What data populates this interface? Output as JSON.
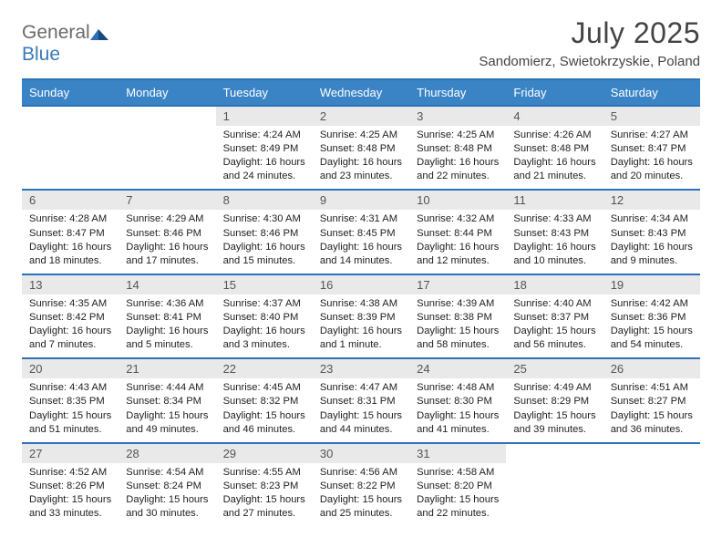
{
  "brand": {
    "word1": "General",
    "word2": "Blue",
    "word1_color": "#6a6a6a",
    "word2_color": "#3a7ab8"
  },
  "title": "July 2025",
  "subtitle": "Sandomierz, Swietokrzyskie, Poland",
  "colors": {
    "header_bar": "#3a84c6",
    "rule": "#2e71b8",
    "daynum_bg": "#e9e9e9",
    "daynum_fg": "#555555",
    "text": "#222222",
    "bg": "#ffffff"
  },
  "fonts": {
    "title_size_pt": 24,
    "subtitle_size_pt": 11,
    "dow_size_pt": 10,
    "cell_size_pt": 8.5
  },
  "days_of_week": [
    "Sunday",
    "Monday",
    "Tuesday",
    "Wednesday",
    "Thursday",
    "Friday",
    "Saturday"
  ],
  "weeks": [
    [
      {
        "n": "",
        "sunrise": "",
        "sunset": "",
        "daylight": ""
      },
      {
        "n": "",
        "sunrise": "",
        "sunset": "",
        "daylight": ""
      },
      {
        "n": "1",
        "sunrise": "Sunrise: 4:24 AM",
        "sunset": "Sunset: 8:49 PM",
        "daylight": "Daylight: 16 hours and 24 minutes."
      },
      {
        "n": "2",
        "sunrise": "Sunrise: 4:25 AM",
        "sunset": "Sunset: 8:48 PM",
        "daylight": "Daylight: 16 hours and 23 minutes."
      },
      {
        "n": "3",
        "sunrise": "Sunrise: 4:25 AM",
        "sunset": "Sunset: 8:48 PM",
        "daylight": "Daylight: 16 hours and 22 minutes."
      },
      {
        "n": "4",
        "sunrise": "Sunrise: 4:26 AM",
        "sunset": "Sunset: 8:48 PM",
        "daylight": "Daylight: 16 hours and 21 minutes."
      },
      {
        "n": "5",
        "sunrise": "Sunrise: 4:27 AM",
        "sunset": "Sunset: 8:47 PM",
        "daylight": "Daylight: 16 hours and 20 minutes."
      }
    ],
    [
      {
        "n": "6",
        "sunrise": "Sunrise: 4:28 AM",
        "sunset": "Sunset: 8:47 PM",
        "daylight": "Daylight: 16 hours and 18 minutes."
      },
      {
        "n": "7",
        "sunrise": "Sunrise: 4:29 AM",
        "sunset": "Sunset: 8:46 PM",
        "daylight": "Daylight: 16 hours and 17 minutes."
      },
      {
        "n": "8",
        "sunrise": "Sunrise: 4:30 AM",
        "sunset": "Sunset: 8:46 PM",
        "daylight": "Daylight: 16 hours and 15 minutes."
      },
      {
        "n": "9",
        "sunrise": "Sunrise: 4:31 AM",
        "sunset": "Sunset: 8:45 PM",
        "daylight": "Daylight: 16 hours and 14 minutes."
      },
      {
        "n": "10",
        "sunrise": "Sunrise: 4:32 AM",
        "sunset": "Sunset: 8:44 PM",
        "daylight": "Daylight: 16 hours and 12 minutes."
      },
      {
        "n": "11",
        "sunrise": "Sunrise: 4:33 AM",
        "sunset": "Sunset: 8:43 PM",
        "daylight": "Daylight: 16 hours and 10 minutes."
      },
      {
        "n": "12",
        "sunrise": "Sunrise: 4:34 AM",
        "sunset": "Sunset: 8:43 PM",
        "daylight": "Daylight: 16 hours and 9 minutes."
      }
    ],
    [
      {
        "n": "13",
        "sunrise": "Sunrise: 4:35 AM",
        "sunset": "Sunset: 8:42 PM",
        "daylight": "Daylight: 16 hours and 7 minutes."
      },
      {
        "n": "14",
        "sunrise": "Sunrise: 4:36 AM",
        "sunset": "Sunset: 8:41 PM",
        "daylight": "Daylight: 16 hours and 5 minutes."
      },
      {
        "n": "15",
        "sunrise": "Sunrise: 4:37 AM",
        "sunset": "Sunset: 8:40 PM",
        "daylight": "Daylight: 16 hours and 3 minutes."
      },
      {
        "n": "16",
        "sunrise": "Sunrise: 4:38 AM",
        "sunset": "Sunset: 8:39 PM",
        "daylight": "Daylight: 16 hours and 1 minute."
      },
      {
        "n": "17",
        "sunrise": "Sunrise: 4:39 AM",
        "sunset": "Sunset: 8:38 PM",
        "daylight": "Daylight: 15 hours and 58 minutes."
      },
      {
        "n": "18",
        "sunrise": "Sunrise: 4:40 AM",
        "sunset": "Sunset: 8:37 PM",
        "daylight": "Daylight: 15 hours and 56 minutes."
      },
      {
        "n": "19",
        "sunrise": "Sunrise: 4:42 AM",
        "sunset": "Sunset: 8:36 PM",
        "daylight": "Daylight: 15 hours and 54 minutes."
      }
    ],
    [
      {
        "n": "20",
        "sunrise": "Sunrise: 4:43 AM",
        "sunset": "Sunset: 8:35 PM",
        "daylight": "Daylight: 15 hours and 51 minutes."
      },
      {
        "n": "21",
        "sunrise": "Sunrise: 4:44 AM",
        "sunset": "Sunset: 8:34 PM",
        "daylight": "Daylight: 15 hours and 49 minutes."
      },
      {
        "n": "22",
        "sunrise": "Sunrise: 4:45 AM",
        "sunset": "Sunset: 8:32 PM",
        "daylight": "Daylight: 15 hours and 46 minutes."
      },
      {
        "n": "23",
        "sunrise": "Sunrise: 4:47 AM",
        "sunset": "Sunset: 8:31 PM",
        "daylight": "Daylight: 15 hours and 44 minutes."
      },
      {
        "n": "24",
        "sunrise": "Sunrise: 4:48 AM",
        "sunset": "Sunset: 8:30 PM",
        "daylight": "Daylight: 15 hours and 41 minutes."
      },
      {
        "n": "25",
        "sunrise": "Sunrise: 4:49 AM",
        "sunset": "Sunset: 8:29 PM",
        "daylight": "Daylight: 15 hours and 39 minutes."
      },
      {
        "n": "26",
        "sunrise": "Sunrise: 4:51 AM",
        "sunset": "Sunset: 8:27 PM",
        "daylight": "Daylight: 15 hours and 36 minutes."
      }
    ],
    [
      {
        "n": "27",
        "sunrise": "Sunrise: 4:52 AM",
        "sunset": "Sunset: 8:26 PM",
        "daylight": "Daylight: 15 hours and 33 minutes."
      },
      {
        "n": "28",
        "sunrise": "Sunrise: 4:54 AM",
        "sunset": "Sunset: 8:24 PM",
        "daylight": "Daylight: 15 hours and 30 minutes."
      },
      {
        "n": "29",
        "sunrise": "Sunrise: 4:55 AM",
        "sunset": "Sunset: 8:23 PM",
        "daylight": "Daylight: 15 hours and 27 minutes."
      },
      {
        "n": "30",
        "sunrise": "Sunrise: 4:56 AM",
        "sunset": "Sunset: 8:22 PM",
        "daylight": "Daylight: 15 hours and 25 minutes."
      },
      {
        "n": "31",
        "sunrise": "Sunrise: 4:58 AM",
        "sunset": "Sunset: 8:20 PM",
        "daylight": "Daylight: 15 hours and 22 minutes."
      },
      {
        "n": "",
        "sunrise": "",
        "sunset": "",
        "daylight": ""
      },
      {
        "n": "",
        "sunrise": "",
        "sunset": "",
        "daylight": ""
      }
    ]
  ]
}
